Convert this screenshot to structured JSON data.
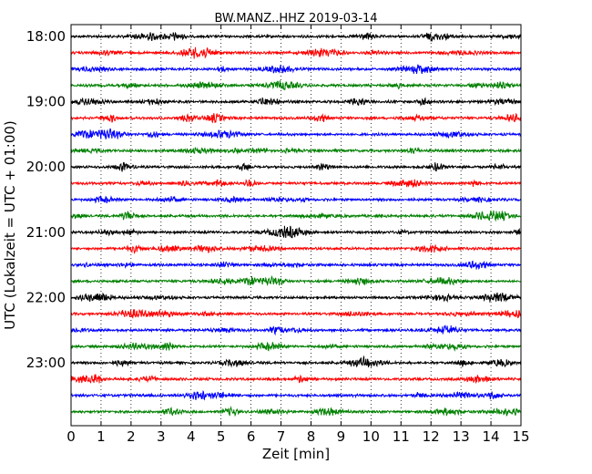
{
  "chart_data": {
    "type": "line",
    "title": "BW.MANZ..HHZ 2019-03-14",
    "xlabel": "Zeit  [min]",
    "ylabel": "UTC (Lokalzeit = UTC + 01:00)",
    "xlim": [
      0,
      15
    ],
    "x_ticks": [
      "0",
      "1",
      "2",
      "3",
      "4",
      "5",
      "6",
      "7",
      "8",
      "9",
      "10",
      "11",
      "12",
      "13",
      "14",
      "15"
    ],
    "y_ticks": [
      {
        "label": "18:00",
        "trace": 0
      },
      {
        "label": "19:00",
        "trace": 4
      },
      {
        "label": "20:00",
        "trace": 8
      },
      {
        "label": "21:00",
        "trace": 12
      },
      {
        "label": "22:00",
        "trace": 16
      },
      {
        "label": "23:00",
        "trace": 20
      }
    ],
    "trace_start_times": [
      "18:00",
      "18:15",
      "18:30",
      "18:45",
      "19:00",
      "19:15",
      "19:30",
      "19:45",
      "20:00",
      "20:15",
      "20:30",
      "20:45",
      "21:00",
      "21:15",
      "21:30",
      "21:45",
      "22:00",
      "22:15",
      "22:30",
      "22:45",
      "23:00",
      "23:15",
      "23:30",
      "23:45"
    ],
    "trace_colors": [
      "#000000",
      "#ff0000",
      "#0000ff",
      "#008000"
    ],
    "grid": "vertical dotted at each minute",
    "legend": "none"
  }
}
